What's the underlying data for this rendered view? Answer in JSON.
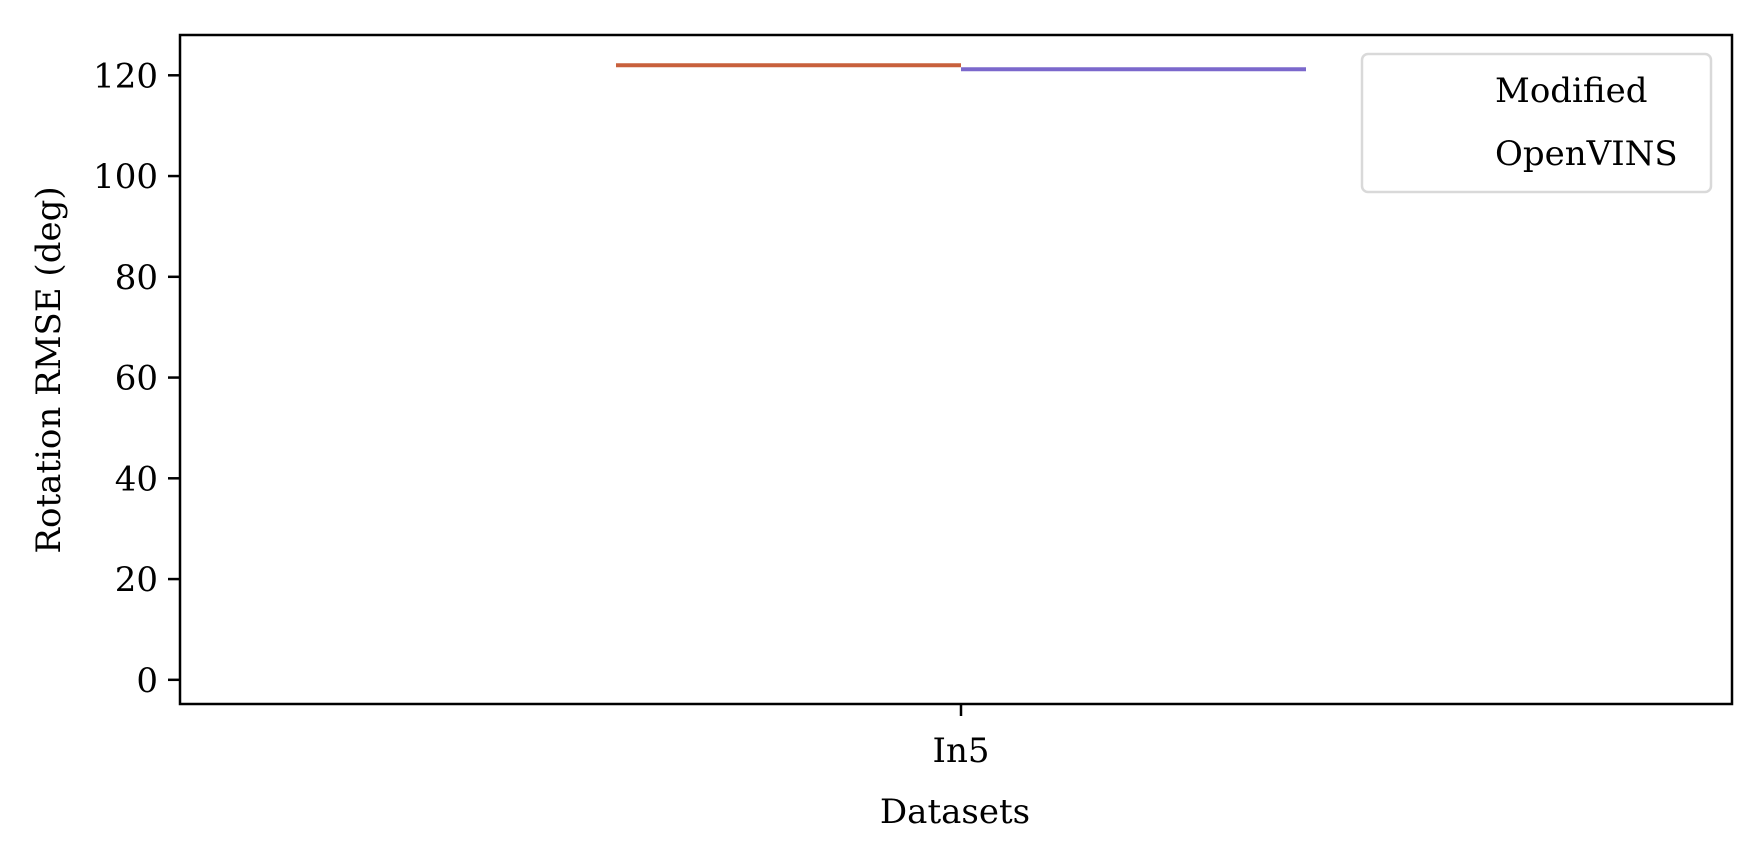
{
  "chart_data": {
    "type": "bar",
    "categories": [
      "In5"
    ],
    "series": [
      {
        "name": "Modified",
        "values": [
          122
        ],
        "color": "#c8603c"
      },
      {
        "name": "OpenVINS",
        "values": [
          121.2
        ],
        "color": "#7b68cc"
      }
    ],
    "xlabel": "Datasets",
    "ylabel": "Rotation RMSE (deg)",
    "ylim": [
      -4.8,
      128
    ],
    "yticks": [
      0,
      20,
      40,
      60,
      80,
      100,
      120
    ],
    "grid": false,
    "legend_position": "top-right"
  }
}
